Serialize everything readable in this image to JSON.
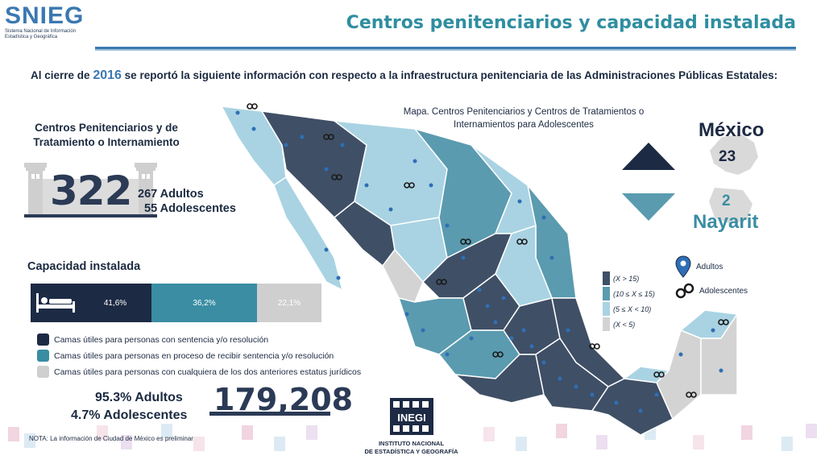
{
  "logo": {
    "word": "SNIEG",
    "subtitle_line1": "Sistema Nacional de Información",
    "subtitle_line2": "Estadística y Geográfica"
  },
  "title": "Centros penitenciarios y capacidad instalada",
  "intro": {
    "prefix": "Al cierre de",
    "year": "2016",
    "text": "se reportó la siguiente información con respecto a la infraestructura penitenciaria de las Administraciones Públicas Estatales:"
  },
  "centers": {
    "title": "Centros Penitenciarios y de Tratamiento o Internamiento",
    "total": "322",
    "adults": "267 Adultos",
    "adolescents": "55 Adolescentes"
  },
  "capacity": {
    "title": "Capacidad instalada",
    "segments": [
      {
        "label": "41,6%",
        "value": 41.6,
        "color": "#1d2a44"
      },
      {
        "label": "36,2%",
        "value": 36.2,
        "color": "#3a8da3"
      },
      {
        "label": "22,1%",
        "value": 22.1,
        "color": "#cfcfcf"
      }
    ],
    "legend": [
      {
        "label": "Camas útiles para personas con sentencia y/o resolución",
        "color": "#1d2a44"
      },
      {
        "label": "Camas útiles para personas en proceso de recibir sentencia y/o resolución",
        "color": "#3a8da3"
      },
      {
        "label": "Camas útiles para personas con cualquiera de los dos anteriores estatus jurídicos",
        "color": "#cfcfcf"
      }
    ],
    "pct_adults": "95.3% Adultos",
    "pct_adolescents": "4.7% Adolescentes",
    "total_beds": "179,208"
  },
  "note": "NOTA: La información de Ciudad de México es preliminar",
  "inegi": {
    "word": "INEGI",
    "line1": "INSTITUTO NACIONAL",
    "line2": "DE ESTADÍSTICA Y GEOGRAFÍA"
  },
  "map": {
    "caption": "Mapa. Centros Penitenciarios y Centros de Tratamientos o Internamientos para Adolescentes",
    "ranges": [
      {
        "label": "(X > 15)",
        "color": "#3f4f66"
      },
      {
        "label": "(10 ≤ X ≤ 15)",
        "color": "#5a9bb0"
      },
      {
        "label": "(5 ≤ X < 10)",
        "color": "#a9d3e3"
      },
      {
        "label": "(X < 5)",
        "color": "#d3d3d3"
      }
    ],
    "symbols": [
      {
        "label": "Adultos",
        "icon": "map-pin-icon"
      },
      {
        "label": "Adolescentes",
        "icon": "handcuffs-icon"
      }
    ]
  },
  "highest": {
    "state": "México",
    "value": "23"
  },
  "lowest": {
    "state": "Nayarit",
    "value": "2"
  }
}
